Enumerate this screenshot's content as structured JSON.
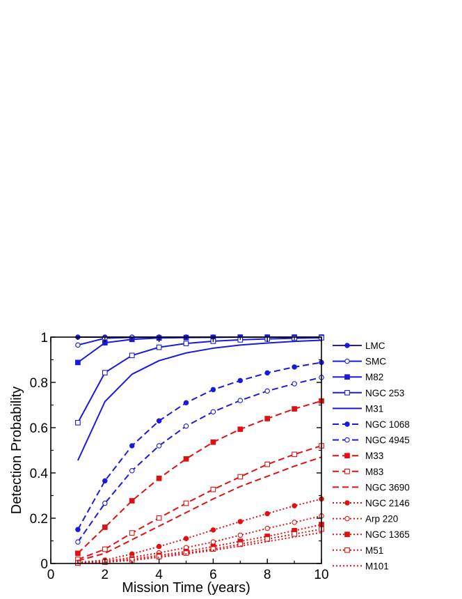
{
  "chart_data": {
    "type": "line",
    "xlabel": "Mission Time (years)",
    "ylabel": "Detection Probability",
    "xlim": [
      0,
      10
    ],
    "ylim": [
      0,
      1
    ],
    "xticks": [
      0,
      2,
      4,
      6,
      8,
      10
    ],
    "yticks": [
      0,
      0.2,
      0.4,
      0.6,
      0.8,
      1
    ],
    "xtick_labels": [
      "0",
      "2",
      "4",
      "6",
      "8",
      "10"
    ],
    "ytick_labels": [
      "0",
      "0.2",
      "0.4",
      "0.6",
      "0.8",
      "1"
    ],
    "grid": false,
    "legend_position": "right",
    "x": [
      1,
      2,
      3,
      4,
      5,
      6,
      7,
      8,
      9,
      10
    ],
    "series": [
      {
        "name": "LMC",
        "color": "#1a1adc",
        "dash": "solid",
        "marker": "circle-filled",
        "values": [
          1.0,
          1.0,
          1.0,
          1.0,
          1.0,
          1.0,
          1.0,
          1.0,
          1.0,
          1.0
        ]
      },
      {
        "name": "SMC",
        "color": "#1a1adc",
        "dash": "solid",
        "marker": "circle-open",
        "values": [
          0.965,
          0.995,
          0.999,
          1.0,
          1.0,
          1.0,
          1.0,
          1.0,
          1.0,
          1.0
        ]
      },
      {
        "name": "M82",
        "color": "#1a1adc",
        "dash": "solid",
        "marker": "square-filled",
        "values": [
          0.888,
          0.975,
          0.99,
          0.996,
          0.998,
          0.999,
          1.0,
          1.0,
          1.0,
          1.0
        ]
      },
      {
        "name": "NGC 253",
        "color": "#1a1adc",
        "dash": "solid",
        "marker": "square-open",
        "values": [
          0.622,
          0.843,
          0.919,
          0.955,
          0.972,
          0.982,
          0.988,
          0.992,
          0.995,
          0.997
        ]
      },
      {
        "name": "M31",
        "color": "#1a1adc",
        "dash": "solid",
        "marker": "none",
        "values": [
          0.455,
          0.715,
          0.836,
          0.896,
          0.93,
          0.951,
          0.965,
          0.974,
          0.981,
          0.986
        ]
      },
      {
        "name": "NGC 1068",
        "color": "#1a1adc",
        "dash": "dashed",
        "marker": "circle-filled",
        "values": [
          0.15,
          0.365,
          0.52,
          0.63,
          0.71,
          0.768,
          0.808,
          0.842,
          0.868,
          0.888
        ]
      },
      {
        "name": "NGC 4945",
        "color": "#1a1adc",
        "dash": "dashed",
        "marker": "circle-open",
        "values": [
          0.095,
          0.266,
          0.41,
          0.52,
          0.607,
          0.67,
          0.72,
          0.762,
          0.794,
          0.822
        ]
      },
      {
        "name": "M33",
        "color": "#e01010",
        "dash": "dashed",
        "marker": "square-filled",
        "values": [
          0.045,
          0.16,
          0.277,
          0.376,
          0.462,
          0.536,
          0.593,
          0.64,
          0.683,
          0.718
        ]
      },
      {
        "name": "M83",
        "color": "#e01010",
        "dash": "dashed",
        "marker": "square-open",
        "values": [
          0.018,
          0.063,
          0.135,
          0.201,
          0.266,
          0.327,
          0.383,
          0.438,
          0.482,
          0.52
        ]
      },
      {
        "name": "NGC 3690",
        "color": "#e01010",
        "dash": "dashed",
        "marker": "none",
        "values": [
          0.012,
          0.045,
          0.105,
          0.165,
          0.225,
          0.285,
          0.34,
          0.385,
          0.43,
          0.47
        ]
      },
      {
        "name": "NGC 2146",
        "color": "#e01010",
        "dash": "dotted",
        "marker": "circle-filled",
        "values": [
          0.005,
          0.015,
          0.042,
          0.075,
          0.11,
          0.148,
          0.185,
          0.22,
          0.255,
          0.285
        ]
      },
      {
        "name": "Arp 220",
        "color": "#e01010",
        "dash": "dotted",
        "marker": "circle-open",
        "values": [
          0.003,
          0.01,
          0.027,
          0.047,
          0.07,
          0.095,
          0.125,
          0.155,
          0.182,
          0.21
        ]
      },
      {
        "name": "NGC 1365",
        "color": "#e01010",
        "dash": "dotted",
        "marker": "square-filled",
        "values": [
          0.002,
          0.007,
          0.02,
          0.036,
          0.053,
          0.075,
          0.098,
          0.12,
          0.145,
          0.172
        ]
      },
      {
        "name": "M51",
        "color": "#e01010",
        "dash": "dotted",
        "marker": "square-open",
        "values": [
          0.002,
          0.006,
          0.016,
          0.03,
          0.046,
          0.064,
          0.085,
          0.108,
          0.13,
          0.152
        ]
      },
      {
        "name": "M101",
        "color": "#e01010",
        "dash": "dotted",
        "marker": "none",
        "values": [
          0.001,
          0.005,
          0.014,
          0.027,
          0.042,
          0.058,
          0.077,
          0.097,
          0.117,
          0.137
        ]
      }
    ]
  }
}
